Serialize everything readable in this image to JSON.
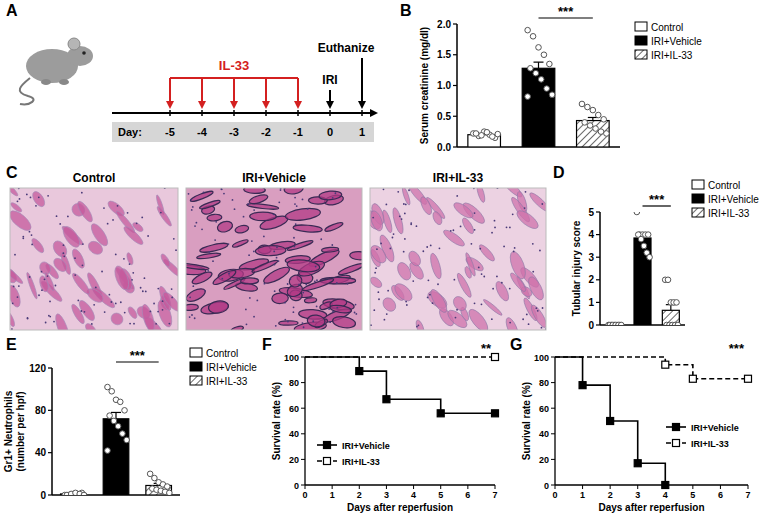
{
  "timeline": {
    "title": "A",
    "treatment": "IL-33",
    "axis_label": "Day:",
    "days": [
      -5,
      -4,
      -3,
      -2,
      -1,
      0,
      1
    ],
    "treatment_days": [
      -5,
      -4,
      -3,
      -2,
      -1
    ],
    "events": [
      {
        "label": "IRI",
        "day": 0
      },
      {
        "label": "Euthanize",
        "day": 1
      }
    ]
  },
  "histology": {
    "title": "C",
    "images": [
      "Control",
      "IRI+Vehicle",
      "IRI+IL-33"
    ]
  },
  "chart_data": [
    {
      "type": "bar",
      "title": "B",
      "ylabel": "Serum creatinine (mg/dl)",
      "categories": [
        null
      ],
      "ylim": [
        0,
        2
      ],
      "yticks": [
        {
          "value": 0,
          "label": "0.0"
        },
        {
          "value": 0.5,
          "label": "0.5"
        },
        {
          "value": 1,
          "label": "1.0"
        },
        {
          "value": 1.5,
          "label": "1.5"
        },
        {
          "value": 2,
          "label": "2.0"
        }
      ],
      "legend": "right",
      "annotations": [
        "***"
      ],
      "series": [
        {
          "name": "Control",
          "color": "#ffffff",
          "values": [
            0.2
          ],
          "errors": [
            0.02
          ],
          "points": [
            [
              0.22,
              0.18,
              0.25,
              0.2,
              0.15,
              0.22,
              0.19,
              0.24,
              0.17,
              0.21
            ]
          ]
        },
        {
          "name": "IRI+Vehicle",
          "color": "#000000",
          "values": [
            1.28
          ],
          "errors": [
            0.1
          ],
          "points": [
            [
              1.9,
              1.8,
              1.62,
              1.5,
              1.35,
              1.28,
              1.2,
              1.1,
              0.95,
              0.85,
              0.82
            ]
          ]
        },
        {
          "name": "IRI+IL-33",
          "color": "#444444",
          "line_style": "hatched",
          "values": [
            0.43
          ],
          "errors": [
            0.05
          ],
          "points": [
            [
              0.7,
              0.65,
              0.6,
              0.52,
              0.45,
              0.4,
              0.35,
              0.3,
              0.25,
              0.22
            ]
          ]
        }
      ]
    },
    {
      "type": "bar",
      "title": "D",
      "ylabel": "Tubular injury score",
      "categories": [
        null
      ],
      "ylim": [
        0,
        5
      ],
      "yticks": [
        0,
        1,
        2,
        3,
        4,
        5
      ],
      "legend": "right",
      "annotations": [
        "***"
      ],
      "series": [
        {
          "name": "Control",
          "color": "#ffffff",
          "values": [
            0
          ],
          "errors": [
            0
          ],
          "points": [
            [
              0,
              0,
              0,
              0,
              0,
              0,
              0,
              0,
              0,
              0
            ]
          ]
        },
        {
          "name": "IRI+Vehicle",
          "color": "#000000",
          "values": [
            3.85
          ],
          "errors": [
            0.15
          ],
          "points": [
            [
              5,
              4,
              4,
              4,
              4,
              4,
              3.8,
              3.5,
              3.2,
              3
            ]
          ]
        },
        {
          "name": "IRI+IL-33",
          "color": "#444444",
          "line_style": "hatched",
          "values": [
            0.65
          ],
          "errors": [
            0.25
          ],
          "points": [
            [
              2,
              2,
              1,
              1,
              1,
              0,
              0,
              0,
              0,
              0
            ]
          ]
        }
      ]
    },
    {
      "type": "bar",
      "title": "E",
      "ylabel": [
        "Gr1+ Neutrophils",
        "(number per hpf)"
      ],
      "categories": [
        null
      ],
      "ylim": [
        0,
        120
      ],
      "yticks": [
        0,
        40,
        80,
        120
      ],
      "legend": "right",
      "annotations": [
        "***"
      ],
      "series": [
        {
          "name": "Control",
          "color": "#ffffff",
          "values": [
            1
          ],
          "errors": [
            0.3
          ],
          "points": [
            [
              0,
              0,
              1,
              1,
              2,
              0,
              1,
              2,
              1,
              0
            ]
          ]
        },
        {
          "name": "IRI+Vehicle",
          "color": "#000000",
          "values": [
            72
          ],
          "errors": [
            6
          ],
          "points": [
            [
              102,
              98,
              90,
              88,
              80,
              75,
              70,
              65,
              58,
              52,
              42
            ]
          ]
        },
        {
          "name": "IRI+IL-33",
          "color": "#444444",
          "line_style": "hatched",
          "values": [
            9
          ],
          "errors": [
            2
          ],
          "points": [
            [
              20,
              16,
              12,
              10,
              8,
              6,
              5,
              4,
              3,
              2
            ]
          ]
        }
      ]
    },
    {
      "type": "step",
      "title": "F",
      "xlabel": "Days after reperfusion",
      "ylabel": "Survival rate (%)",
      "x": [
        0,
        2,
        3,
        5,
        7
      ],
      "xlim": [
        0,
        7
      ],
      "xticks": [
        0,
        1,
        2,
        3,
        4,
        5,
        6,
        7
      ],
      "ylim": [
        0,
        100
      ],
      "yticks": [
        0,
        20,
        40,
        60,
        80,
        100
      ],
      "legend": "lower left",
      "annotations": [
        "**"
      ],
      "series": [
        {
          "name": "IRI+Vehicle",
          "color": "#000000",
          "marker": "square",
          "line_style": "solid",
          "values": [
            100,
            89,
            67,
            56,
            56
          ]
        },
        {
          "name": "IRI+IL-33",
          "color": "#000000",
          "marker": "square-open",
          "line_style": "dashed",
          "values": [
            100,
            100,
            100,
            100,
            100
          ]
        }
      ]
    },
    {
      "type": "step",
      "title": "G",
      "xlabel": "Days after reperfusion",
      "ylabel": "Survival rate (%)",
      "x": [
        0,
        1,
        2,
        3,
        4,
        5,
        7
      ],
      "xlim": [
        0,
        7
      ],
      "xticks": [
        0,
        1,
        2,
        3,
        4,
        5,
        6,
        7
      ],
      "ylim": [
        0,
        100
      ],
      "yticks": [
        0,
        20,
        40,
        60,
        80,
        100
      ],
      "legend": "right",
      "annotations": [
        "***"
      ],
      "series": [
        {
          "name": "IRI+Vehicle",
          "color": "#000000",
          "marker": "square",
          "line_style": "solid",
          "values": [
            100,
            78,
            50,
            17,
            0,
            null,
            null
          ]
        },
        {
          "name": "IRI+IL-33",
          "color": "#000000",
          "marker": "square-open",
          "line_style": "dashed",
          "values": [
            100,
            100,
            100,
            100,
            94,
            83,
            83
          ]
        }
      ]
    }
  ]
}
